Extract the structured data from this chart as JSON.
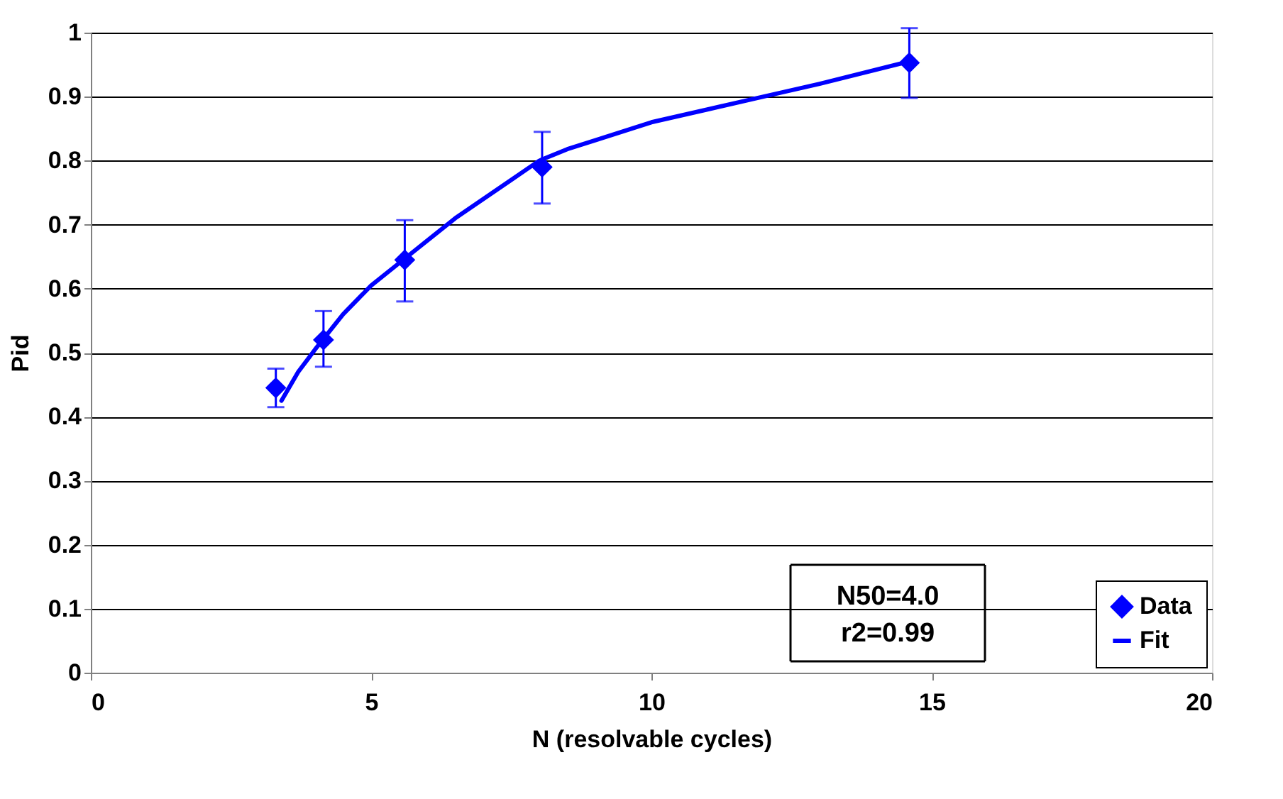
{
  "chart_data": {
    "type": "scatter",
    "xlabel": "N (resolvable cycles)",
    "ylabel": "Pid",
    "xlim": [
      0,
      20
    ],
    "xticks": [
      0,
      5,
      10,
      15,
      20
    ],
    "ylim": [
      0,
      1
    ],
    "yticks": [
      0,
      0.1,
      0.2,
      0.3,
      0.4,
      0.5,
      0.6,
      0.7,
      0.8,
      0.9,
      1
    ],
    "grid": "y",
    "legend": "bottom right",
    "annotations": [
      "N50=4.0",
      "r2=0.99"
    ],
    "series": [
      {
        "name": "Data",
        "marker": "diamond",
        "color": "#0000ff",
        "x": [
          3.3,
          4.15,
          5.6,
          8.05,
          14.6
        ],
        "values": [
          0.445,
          0.52,
          0.645,
          0.79,
          0.953
        ],
        "errors": [
          [
            0.415,
            0.475
          ],
          [
            0.478,
            0.565
          ],
          [
            0.58,
            0.707
          ],
          [
            0.733,
            0.845
          ],
          [
            0.898,
            1.007
          ]
        ]
      },
      {
        "name": "Fit",
        "type": "line",
        "line_style": "solid",
        "color": "#0000ff",
        "x": [
          3.4,
          3.7,
          4.0,
          4.5,
          5.0,
          5.5,
          6.0,
          6.5,
          7.0,
          7.5,
          8.0,
          8.5,
          9.0,
          10.0,
          11.0,
          12.0,
          13.0,
          14.6
        ],
        "values": [
          0.425,
          0.47,
          0.505,
          0.56,
          0.605,
          0.64,
          0.675,
          0.71,
          0.74,
          0.77,
          0.8,
          0.818,
          0.832,
          0.86,
          0.88,
          0.9,
          0.92,
          0.955
        ]
      }
    ]
  }
}
